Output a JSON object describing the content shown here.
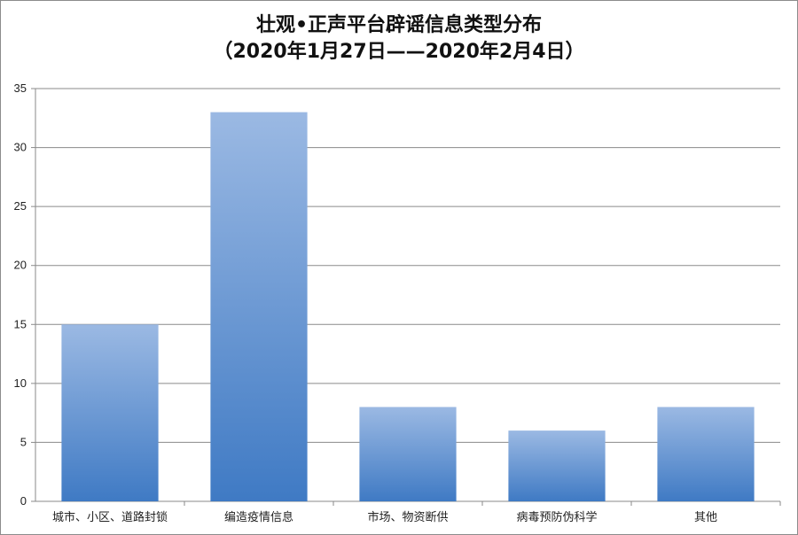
{
  "chart_data": {
    "type": "bar",
    "title": "壮观•正声平台辟谣信息类型分布",
    "subtitle": "（2020年1月27日——2020年2月4日）",
    "categories": [
      "城市、小区、道路封锁",
      "编造疫情信息",
      "市场、物资断供",
      "病毒预防伪科学",
      "其他"
    ],
    "series": [
      {
        "values": [
          15,
          33,
          8,
          6,
          8
        ]
      }
    ],
    "ylim": [
      0,
      35
    ],
    "yticks": [
      0,
      5,
      10,
      15,
      20,
      25,
      30,
      35
    ],
    "xlabel": "",
    "ylabel": "",
    "grid": true,
    "legend": "none",
    "colors": {
      "bar_top": "#9bb9e3",
      "bar_bottom": "#3f7ac4",
      "grid": "#8a8a8a",
      "axis": "#8a8a8a"
    }
  }
}
